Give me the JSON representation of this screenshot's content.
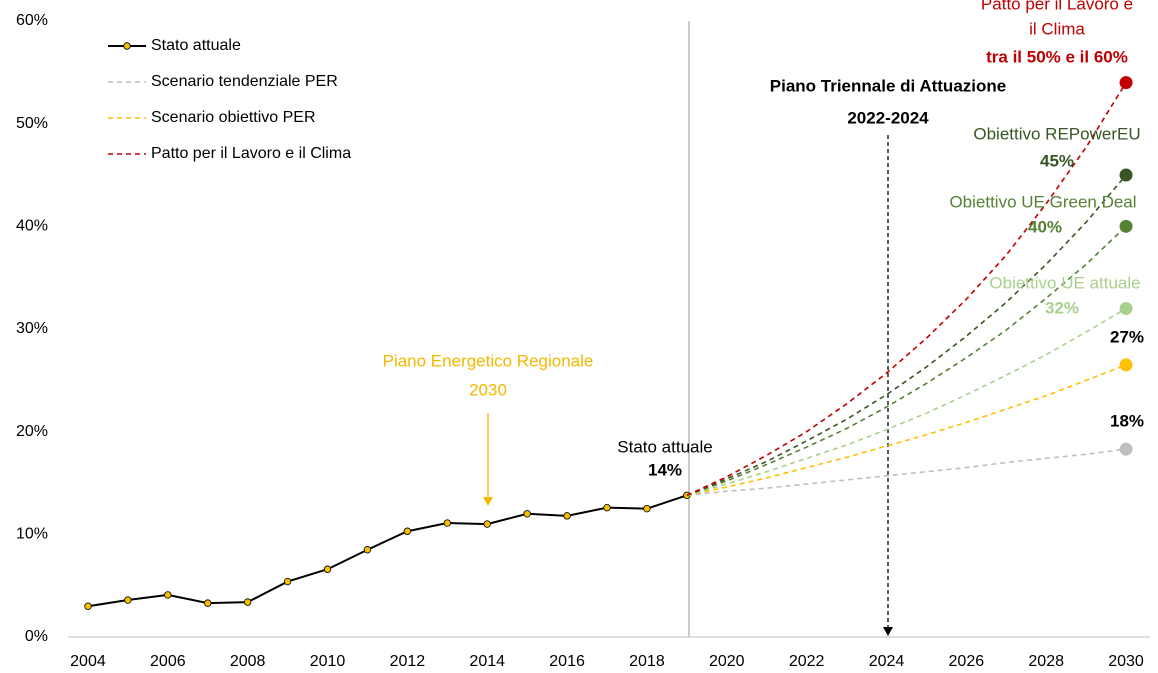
{
  "chart_data": {
    "type": "line",
    "xlim": [
      2003.5,
      2030.6
    ],
    "xticks": [
      2004,
      2006,
      2008,
      2010,
      2012,
      2014,
      2016,
      2018,
      2020,
      2022,
      2024,
      2026,
      2028,
      2030
    ],
    "ylim": [
      0,
      60
    ],
    "yticks": [
      {
        "value": 0,
        "label": "0%"
      },
      {
        "value": 10,
        "label": "10%"
      },
      {
        "value": 20,
        "label": "20%"
      },
      {
        "value": 30,
        "label": "30%"
      },
      {
        "value": 40,
        "label": "40%"
      },
      {
        "value": 50,
        "label": "50%"
      },
      {
        "value": 60,
        "label": "60%"
      }
    ],
    "grid": false,
    "legend": "upper left",
    "series": [
      {
        "name": "Stato attuale",
        "color": "#000000",
        "marker_color": "#f5c000",
        "dash": false,
        "markers": true,
        "x": [
          2004,
          2005,
          2006,
          2007,
          2008,
          2009,
          2010,
          2011,
          2012,
          2013,
          2014,
          2015,
          2016,
          2017,
          2018,
          2019
        ],
        "values": [
          3.0,
          3.6,
          4.1,
          3.3,
          3.4,
          5.4,
          6.6,
          8.5,
          10.3,
          11.1,
          11.0,
          12.0,
          11.8,
          12.6,
          12.5,
          13.8
        ]
      },
      {
        "name": "Scenario tendenziale PER",
        "color": "#bfbfbf",
        "dash": true,
        "end_marker": true,
        "x": [
          2019,
          2020,
          2021,
          2022,
          2023,
          2024,
          2025,
          2026,
          2027,
          2028,
          2029,
          2030
        ],
        "values": [
          13.8,
          14.2,
          14.5,
          14.9,
          15.3,
          15.7,
          16.1,
          16.5,
          17.0,
          17.4,
          17.8,
          18.3
        ]
      },
      {
        "name": "Scenario obiettivo PER",
        "color": "#ffc000",
        "dash": true,
        "end_marker": true,
        "x": [
          2019,
          2020,
          2021,
          2022,
          2023,
          2024,
          2025,
          2026,
          2027,
          2028,
          2029,
          2030
        ],
        "values": [
          13.8,
          14.6,
          15.5,
          16.5,
          17.5,
          18.6,
          19.7,
          20.9,
          22.2,
          23.5,
          25.0,
          26.5
        ]
      },
      {
        "color": "#a9d18e",
        "dash": true,
        "end_marker": true,
        "x": [
          2019,
          2020,
          2021,
          2022,
          2023,
          2024,
          2025,
          2026,
          2027,
          2028,
          2029,
          2030
        ],
        "values": [
          13.8,
          14.9,
          16.1,
          17.4,
          18.7,
          20.2,
          21.8,
          23.6,
          25.5,
          27.5,
          29.7,
          32.0
        ]
      },
      {
        "color": "#548235",
        "dash": true,
        "end_marker": true,
        "x": [
          2019,
          2020,
          2021,
          2022,
          2023,
          2024,
          2025,
          2026,
          2027,
          2028,
          2029,
          2030
        ],
        "values": [
          13.8,
          15.2,
          16.8,
          18.5,
          20.3,
          22.4,
          24.7,
          27.2,
          29.9,
          33.0,
          36.3,
          40.0
        ]
      },
      {
        "color": "#375623",
        "dash": true,
        "end_marker": true,
        "x": [
          2019,
          2020,
          2021,
          2022,
          2023,
          2024,
          2025,
          2026,
          2027,
          2028,
          2029,
          2030
        ],
        "values": [
          13.8,
          15.4,
          17.1,
          19.1,
          21.2,
          23.6,
          26.3,
          29.3,
          32.6,
          36.3,
          40.4,
          45.0
        ]
      },
      {
        "name": "Patto per il Lavoro e il Clima",
        "color": "#c00000",
        "dash": true,
        "end_marker": true,
        "x": [
          2019,
          2020,
          2021,
          2022,
          2023,
          2024,
          2025,
          2026,
          2027,
          2028,
          2029,
          2030
        ],
        "values": [
          13.8,
          15.6,
          17.7,
          20.0,
          22.7,
          25.7,
          29.1,
          32.9,
          37.2,
          42.2,
          47.7,
          54.0
        ]
      }
    ],
    "annotations": [
      {
        "text": "Stato attuale",
        "color": "#000000",
        "bold": false
      },
      {
        "text": "14%",
        "color": "#000000",
        "bold": true
      },
      {
        "text": "18%",
        "color": "#000000",
        "bold": true
      },
      {
        "text": "27%",
        "color": "#000000",
        "bold": true
      },
      {
        "text": "Obiettivo UE attuale",
        "color": "#a9d18e",
        "bold": false
      },
      {
        "text": "32%",
        "color": "#a9d18e",
        "bold": true
      },
      {
        "text": "Obiettivo UE Green Deal",
        "color": "#548235",
        "bold": false
      },
      {
        "text": "40%",
        "color": "#548235",
        "bold": true
      },
      {
        "text": "Obiettivo REPowerEU",
        "color": "#375623",
        "bold": false
      },
      {
        "text": "45%",
        "color": "#375623",
        "bold": true
      },
      {
        "text": "Patto per il Lavoro e",
        "color": "#c00000",
        "bold": false
      },
      {
        "text": "il Clima",
        "color": "#c00000",
        "bold": false
      },
      {
        "text": "tra il 50% e il 60%",
        "color": "#c00000",
        "bold": true
      },
      {
        "text": "Piano Triennale di Attuazione",
        "color": "#000000",
        "bold": true
      },
      {
        "text": "2022-2024",
        "color": "#000000",
        "bold": true
      },
      {
        "text": "Piano Energetico Regionale",
        "color": "#f5b800",
        "bold": false
      },
      {
        "text": "2030",
        "color": "#f5b800",
        "bold": false
      }
    ]
  }
}
